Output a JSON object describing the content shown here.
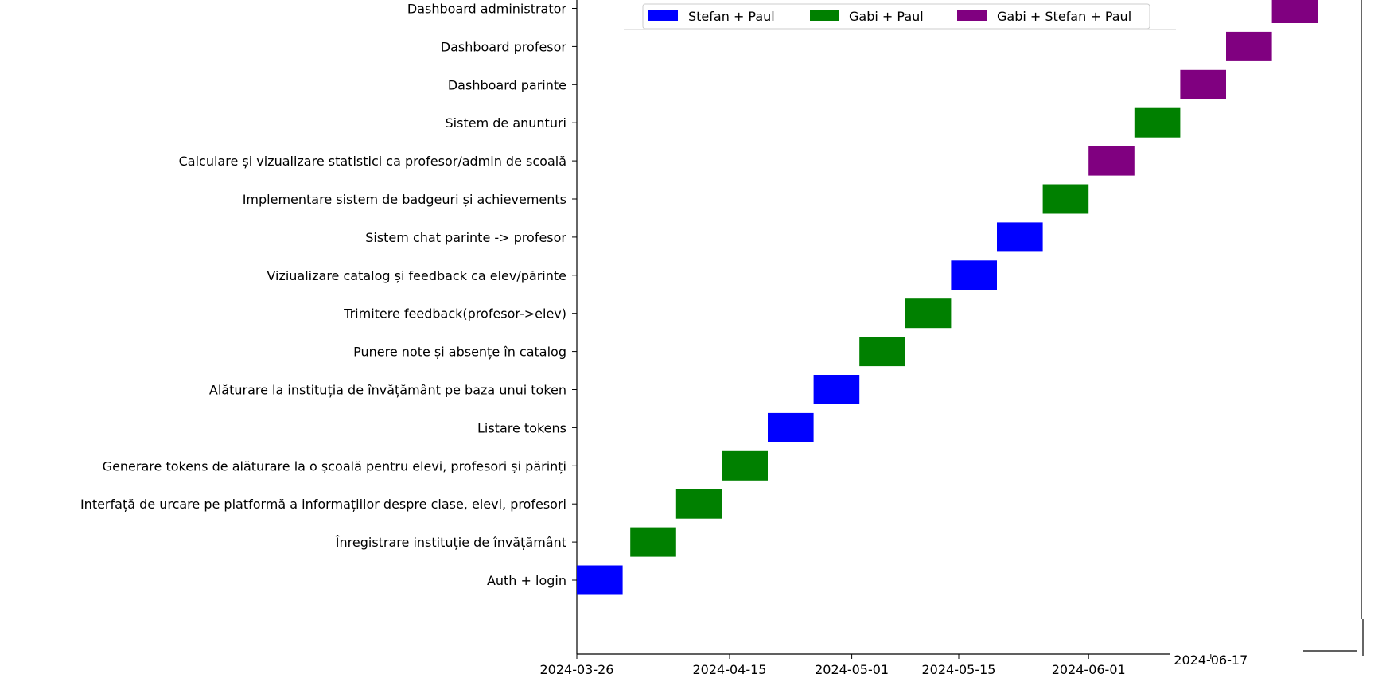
{
  "chart_data": {
    "type": "bar",
    "orientation": "horizontal-gantt",
    "title": "",
    "xlabel": "",
    "ylabel": "",
    "x_start": "2024-03-26",
    "x_ticks": [
      "2024-03-26",
      "2024-04-15",
      "2024-05-01",
      "2024-05-15",
      "2024-06-01",
      "2024-06-17"
    ],
    "legend": {
      "placement": "top-center",
      "entries": [
        {
          "name": "Stefan + Paul",
          "color": "#0000ff"
        },
        {
          "name": "Gabi + Paul",
          "color": "#008000"
        },
        {
          "name": "Gabi + Stefan + Paul",
          "color": "#800080"
        }
      ]
    },
    "tasks": [
      {
        "name": "Auth + login",
        "start": "2024-03-26",
        "end": "2024-04-01",
        "group": "Stefan + Paul"
      },
      {
        "name": "Înregistrare instituție de învățământ",
        "start": "2024-04-02",
        "end": "2024-04-08",
        "group": "Gabi + Paul"
      },
      {
        "name": "Interfață de urcare pe platformă a informațiilor despre clase, elevi, profesori",
        "start": "2024-04-08",
        "end": "2024-04-14",
        "group": "Gabi + Paul"
      },
      {
        "name": "Generare tokens de alăturare la o școală pentru elevi, profesori și părinți",
        "start": "2024-04-14",
        "end": "2024-04-20",
        "group": "Gabi + Paul"
      },
      {
        "name": "Listare tokens",
        "start": "2024-04-20",
        "end": "2024-04-26",
        "group": "Stefan + Paul"
      },
      {
        "name": "Alăturare la instituția de învățământ pe baza unui token",
        "start": "2024-04-26",
        "end": "2024-05-02",
        "group": "Stefan + Paul"
      },
      {
        "name": "Punere note și absențe în catalog",
        "start": "2024-05-02",
        "end": "2024-05-08",
        "group": "Gabi + Paul"
      },
      {
        "name": "Trimitere feedback(profesor->elev)",
        "start": "2024-05-08",
        "end": "2024-05-14",
        "group": "Gabi + Paul"
      },
      {
        "name": "Viziualizare catalog și feedback ca elev/părinte",
        "start": "2024-05-14",
        "end": "2024-05-20",
        "group": "Stefan + Paul"
      },
      {
        "name": "Sistem chat parinte -> profesor",
        "start": "2024-05-20",
        "end": "2024-05-26",
        "group": "Stefan + Paul"
      },
      {
        "name": "Implementare sistem de badgeuri și achievements",
        "start": "2024-05-26",
        "end": "2024-06-01",
        "group": "Gabi + Paul"
      },
      {
        "name": "Calculare și vizualizare statistici ca profesor/admin de scoală",
        "start": "2024-06-01",
        "end": "2024-06-07",
        "group": "Gabi + Stefan + Paul"
      },
      {
        "name": "Sistem de anunturi",
        "start": "2024-06-07",
        "end": "2024-06-13",
        "group": "Gabi + Paul"
      },
      {
        "name": "Dashboard parinte",
        "start": "2024-06-13",
        "end": "2024-06-19",
        "group": "Gabi + Stefan + Paul"
      },
      {
        "name": "Dashboard profesor",
        "start": "2024-06-19",
        "end": "2024-06-25",
        "group": "Gabi + Stefan + Paul"
      },
      {
        "name": "Dashboard administrator",
        "start": "2024-06-25",
        "end": "2024-07-01",
        "group": "Gabi + Stefan + Paul"
      }
    ]
  }
}
